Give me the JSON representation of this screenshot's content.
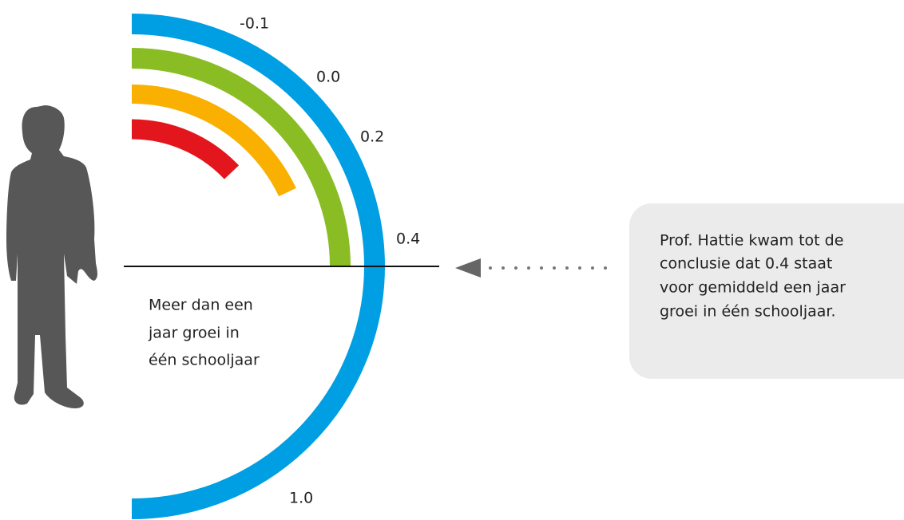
{
  "scale_labels": [
    "-0.1",
    "0.0",
    "0.2",
    "0.4",
    "1.0"
  ],
  "annotation": {
    "lines": [
      "Meer dan een",
      "jaar groei in",
      "één schooljaar"
    ]
  },
  "callout": {
    "lines": [
      "Prof. Hattie kwam tot de",
      "conclusie dat 0.4 staat",
      "voor gemiddeld een jaar",
      "groei in één schooljaar."
    ]
  }
}
